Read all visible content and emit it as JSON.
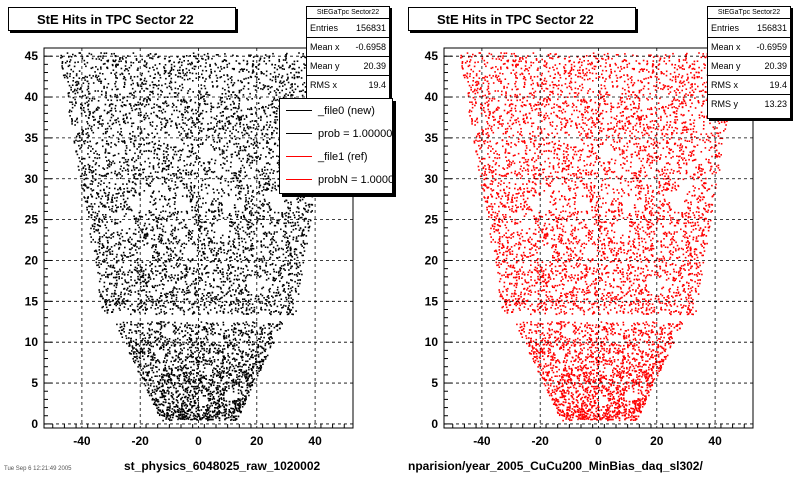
{
  "chart_data": [
    {
      "type": "scatter",
      "title": "StE Hits in TPC Sector 22",
      "stats_title": "StEGaTpc Sector22",
      "stats": [
        {
          "label": "Entries",
          "value": "156831"
        },
        {
          "label": "Mean x",
          "value": "-0.6958"
        },
        {
          "label": "Mean y",
          "value": "20.39"
        },
        {
          "label": "RMS x",
          "value": "19.4"
        }
      ],
      "legend": [
        {
          "label": "_file0 (new)",
          "color": "#000000"
        },
        {
          "label": "prob = 1.000000",
          "color": "#000000"
        },
        {
          "label": "_file1 (ref)",
          "color": "#ff0000"
        },
        {
          "label": "probN = 1.000000",
          "color": "#ff0000"
        }
      ],
      "point_color": "#000000",
      "xlim": [
        -53,
        53
      ],
      "ylim": [
        -0.5,
        46
      ],
      "x_ticks": [
        "-40",
        "-20",
        "0",
        "20",
        "40"
      ],
      "x_tick_values": [
        -40,
        -20,
        0,
        20,
        40
      ],
      "y_ticks": [
        "0",
        "5",
        "10",
        "15",
        "20",
        "25",
        "30",
        "35",
        "40",
        "45"
      ],
      "y_tick_values": [
        0,
        5,
        10,
        15,
        20,
        25,
        30,
        35,
        40,
        45
      ],
      "grid": true,
      "footer": "st_physics_6048025_raw_1020002",
      "small_text": "Tue Sep 6 12:21:49 2005"
    },
    {
      "type": "scatter",
      "title": "StE Hits in TPC Sector 22",
      "stats_title": "StEGaTpc Sector22",
      "stats": [
        {
          "label": "Entries",
          "value": "156831"
        },
        {
          "label": "Mean x",
          "value": "-0.6959"
        },
        {
          "label": "Mean y",
          "value": "20.39"
        },
        {
          "label": "RMS x",
          "value": "19.4"
        },
        {
          "label": "RMS y",
          "value": "13.23"
        }
      ],
      "point_color": "#ff0000",
      "xlim": [
        -53,
        53
      ],
      "ylim": [
        -0.5,
        46
      ],
      "x_ticks": [
        "-40",
        "-20",
        "0",
        "20",
        "40"
      ],
      "x_tick_values": [
        -40,
        -20,
        0,
        20,
        40
      ],
      "y_ticks": [
        "0",
        "5",
        "10",
        "15",
        "20",
        "25",
        "30",
        "35",
        "40",
        "45"
      ],
      "y_tick_values": [
        0,
        5,
        10,
        15,
        20,
        25,
        30,
        35,
        40,
        45
      ],
      "grid": true,
      "footer": "nparision/year_2005_CuCu200_MinBias_daq_sl302/"
    }
  ],
  "hit_region": {
    "upper_sector_rows": [
      13.5,
      45.5
    ],
    "upper_sector_half_width_bottom": 33,
    "upper_sector_half_width_top": 48,
    "gap_rows": [
      12.6,
      13.5
    ],
    "lower_sector_rows": [
      0.5,
      12.6
    ],
    "lower_sector_half_width_bottom": 13,
    "lower_sector_half_width_top": 29
  }
}
